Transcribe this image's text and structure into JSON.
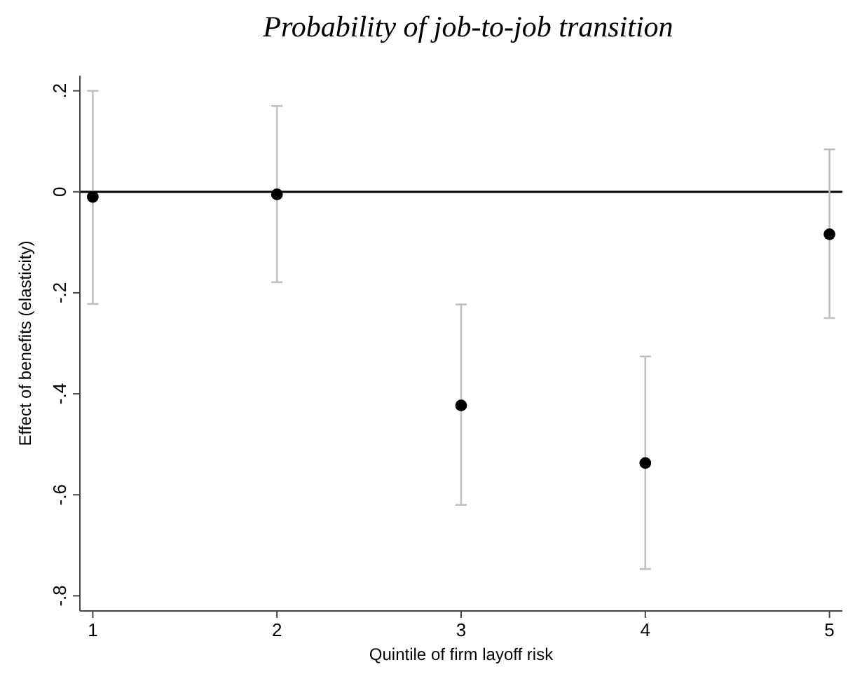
{
  "chart_data": {
    "type": "scatter",
    "title": "Probability of job-to-job transition",
    "xlabel": "Quintile of firm layoff risk",
    "ylabel": "Effect of benefits (elasticity)",
    "x": [
      1,
      2,
      3,
      4,
      5
    ],
    "series": [
      {
        "color": "#000000",
        "values": [
          -0.01,
          -0.005,
          -0.423,
          -0.537,
          -0.084
        ],
        "errors": [
          [
            -0.222,
            0.2
          ],
          [
            -0.179,
            0.17
          ],
          [
            -0.62,
            -0.223
          ],
          [
            -0.747,
            -0.326
          ],
          [
            -0.25,
            0.084
          ]
        ]
      }
    ],
    "xlim": [
      0.93,
      5.07
    ],
    "xticks": [
      1,
      2,
      3,
      4,
      5
    ],
    "ylim": [
      -0.83,
      0.23
    ],
    "yticks": [
      {
        "value": 0.2,
        "label": ".2"
      },
      0,
      {
        "value": -0.2,
        "label": "-.2"
      },
      {
        "value": -0.4,
        "label": "-.4"
      },
      {
        "value": -0.6,
        "label": "-.6"
      },
      {
        "value": -0.8,
        "label": "-.8"
      }
    ],
    "ref_lines": [
      {
        "axis": "y",
        "value": 0,
        "color": "#000000"
      }
    ],
    "marker": "circle"
  }
}
